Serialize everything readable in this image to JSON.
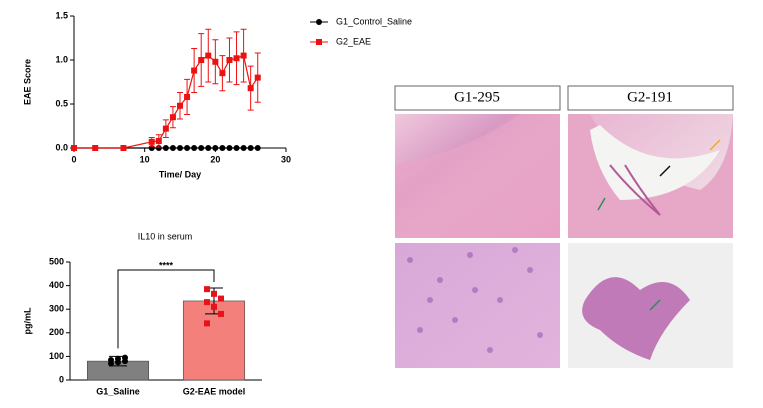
{
  "chart_data": [
    {
      "type": "line",
      "x_label": "Time/ Day",
      "y_label": "EAE Score",
      "xlim": [
        0,
        30
      ],
      "xticks": [
        0,
        10,
        20,
        30
      ],
      "ylim": [
        0,
        1.5
      ],
      "yticks": [
        {
          "value": 0,
          "label": "0.0"
        },
        {
          "value": 0.5,
          "label": "0.5"
        },
        {
          "value": 1,
          "label": "1.0"
        },
        {
          "value": 1.5,
          "label": "1.5"
        }
      ],
      "series": [
        {
          "name": "G1_Control_Saline",
          "color": "#000000",
          "marker": "circle",
          "x": [
            0,
            3,
            7,
            11,
            12,
            13,
            14,
            15,
            16,
            17,
            18,
            19,
            20,
            21,
            22,
            23,
            24,
            25,
            26
          ],
          "values": [
            0,
            0,
            0,
            0,
            0,
            0,
            0,
            0,
            0,
            0,
            0,
            0,
            0,
            0,
            0,
            0,
            0,
            0,
            0
          ]
        },
        {
          "name": "G2_EAE",
          "color": "#ee1111",
          "marker": "square",
          "x": [
            0,
            3,
            7,
            11,
            12,
            13,
            14,
            15,
            16,
            17,
            18,
            19,
            20,
            21,
            22,
            23,
            24,
            25,
            26
          ],
          "values": [
            0,
            0,
            0,
            0.07,
            0.08,
            0.22,
            0.35,
            0.48,
            0.58,
            0.88,
            1.0,
            1.05,
            0.98,
            0.85,
            1.0,
            1.02,
            1.05,
            0.68,
            0.8
          ],
          "errors": [
            0,
            0,
            0,
            0.05,
            0.07,
            0.1,
            0.12,
            0.15,
            0.2,
            0.25,
            0.3,
            0.3,
            0.25,
            0.2,
            0.25,
            0.3,
            0.3,
            0.25,
            0.28
          ]
        }
      ]
    },
    {
      "type": "bar",
      "title": "IL10 in serum",
      "y_label": "pg/mL",
      "categories": [
        "G1_Saline",
        "G2-EAE model"
      ],
      "values": [
        80,
        335
      ],
      "errors": [
        20,
        55
      ],
      "colors": [
        "#808080",
        "#f4807c"
      ],
      "points": [
        [
          70,
          75,
          80,
          85,
          90,
          95
        ],
        [
          385,
          365,
          345,
          330,
          310,
          280,
          240
        ]
      ],
      "annotation": "****",
      "ylim": [
        0,
        500
      ],
      "yticks": [
        0,
        100,
        200,
        300,
        400,
        500
      ]
    }
  ],
  "histology": {
    "panels": [
      {
        "label": "G1-295"
      },
      {
        "label": "G2-191"
      }
    ]
  }
}
